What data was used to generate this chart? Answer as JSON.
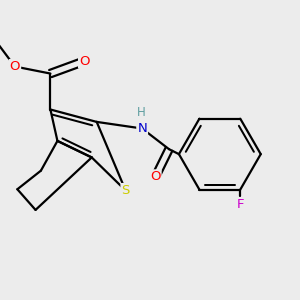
{
  "bg": "#ececec",
  "bond_color": "#000000",
  "lw": 1.6,
  "atom_colors": {
    "O": "#ff0000",
    "N": "#0000cd",
    "S": "#cccc00",
    "F": "#cc00cc",
    "H": "#5f9ea0",
    "C": "#000000"
  },
  "figsize": [
    3.0,
    3.0
  ],
  "dpi": 100,
  "xlim": [
    -1.6,
    2.8
  ],
  "ylim": [
    -2.0,
    2.0
  ]
}
